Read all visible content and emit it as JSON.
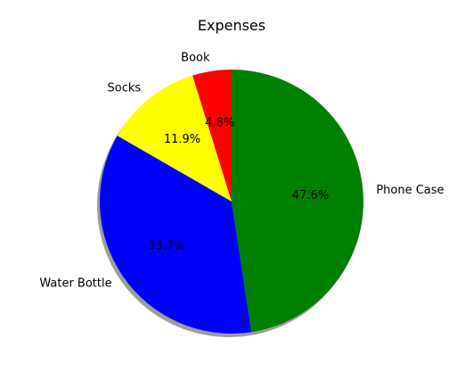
{
  "chart_data": {
    "type": "pie",
    "title": "Expenses",
    "categories": [
      "Book",
      "Socks",
      "Water Bottle",
      "Phone Case"
    ],
    "values": [
      4.8,
      11.9,
      35.7,
      47.6
    ],
    "percent_labels": [
      "4.8%",
      "11.9%",
      "35.7%",
      "47.6%"
    ],
    "colors": [
      "#ff0000",
      "#ffff00",
      "#0000ff",
      "#008000"
    ],
    "shadow": true,
    "start_angle_deg": 90,
    "direction": "counterclockwise"
  }
}
